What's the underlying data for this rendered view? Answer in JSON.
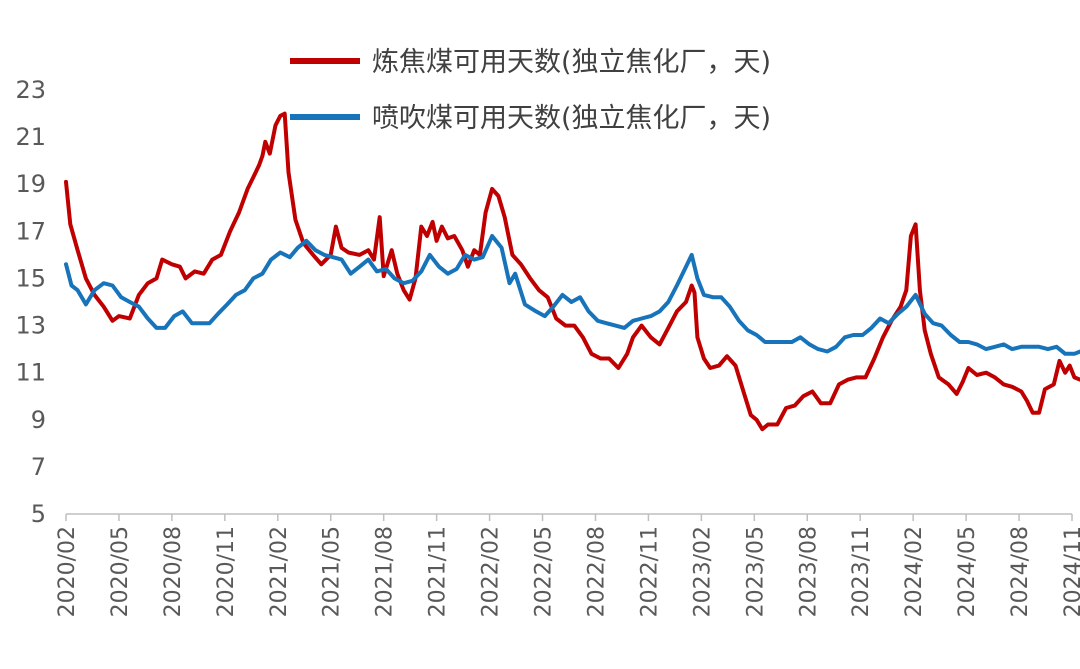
{
  "chart_data": {
    "type": "line",
    "title": "",
    "xlabel": "",
    "ylabel": "",
    "ylim": [
      5,
      23
    ],
    "yticks": [
      "23",
      "21",
      "19",
      "17",
      "15",
      "13",
      "11",
      "9",
      "7",
      "5"
    ],
    "xticks": [
      "2020/02",
      "2020/05",
      "2020/08",
      "2020/11",
      "2021/02",
      "2021/05",
      "2021/08",
      "2021/11",
      "2022/02",
      "2022/05",
      "2022/08",
      "2022/11",
      "2023/02",
      "2023/05",
      "2023/08",
      "2023/11",
      "2024/02",
      "2024/05",
      "2024/08",
      "2024/11"
    ],
    "grid": false,
    "legend_position": "top",
    "series": [
      {
        "name": "炼焦煤可用天数(独立焦化厂，天)",
        "color": "#C00000",
        "points": [
          [
            "2020-02-01",
            19.1
          ],
          [
            "2020-02-08",
            17.3
          ],
          [
            "2020-02-20",
            16.2
          ],
          [
            "2020-03-05",
            15.0
          ],
          [
            "2020-03-20",
            14.3
          ],
          [
            "2020-04-05",
            13.8
          ],
          [
            "2020-04-20",
            13.2
          ],
          [
            "2020-05-01",
            13.4
          ],
          [
            "2020-05-20",
            13.3
          ],
          [
            "2020-06-05",
            14.3
          ],
          [
            "2020-06-20",
            14.8
          ],
          [
            "2020-07-05",
            15.0
          ],
          [
            "2020-07-15",
            15.8
          ],
          [
            "2020-08-01",
            15.6
          ],
          [
            "2020-08-15",
            15.5
          ],
          [
            "2020-08-25",
            15.0
          ],
          [
            "2020-09-10",
            15.3
          ],
          [
            "2020-09-25",
            15.2
          ],
          [
            "2020-10-10",
            15.8
          ],
          [
            "2020-10-25",
            16.0
          ],
          [
            "2020-11-10",
            17.0
          ],
          [
            "2020-11-25",
            17.8
          ],
          [
            "2020-12-10",
            18.8
          ],
          [
            "2020-12-20",
            19.3
          ],
          [
            "2020-12-30",
            19.8
          ],
          [
            "2021-01-05",
            20.2
          ],
          [
            "2021-01-10",
            20.8
          ],
          [
            "2021-01-18",
            20.3
          ],
          [
            "2021-01-28",
            21.5
          ],
          [
            "2021-02-05",
            21.9
          ],
          [
            "2021-02-12",
            22.0
          ],
          [
            "2021-02-18",
            19.5
          ],
          [
            "2021-03-01",
            17.5
          ],
          [
            "2021-03-15",
            16.5
          ],
          [
            "2021-04-01",
            16.0
          ],
          [
            "2021-04-15",
            15.6
          ],
          [
            "2021-05-01",
            16.0
          ],
          [
            "2021-05-10",
            17.2
          ],
          [
            "2021-05-20",
            16.3
          ],
          [
            "2021-06-01",
            16.1
          ],
          [
            "2021-06-20",
            16.0
          ],
          [
            "2021-07-05",
            16.2
          ],
          [
            "2021-07-15",
            15.8
          ],
          [
            "2021-07-25",
            17.6
          ],
          [
            "2021-08-01",
            15.1
          ],
          [
            "2021-08-15",
            16.2
          ],
          [
            "2021-08-25",
            15.2
          ],
          [
            "2021-09-05",
            14.5
          ],
          [
            "2021-09-15",
            14.1
          ],
          [
            "2021-09-25",
            15.0
          ],
          [
            "2021-10-05",
            17.2
          ],
          [
            "2021-10-15",
            16.8
          ],
          [
            "2021-10-25",
            17.4
          ],
          [
            "2021-11-01",
            16.6
          ],
          [
            "2021-11-10",
            17.2
          ],
          [
            "2021-11-20",
            16.7
          ],
          [
            "2021-12-01",
            16.8
          ],
          [
            "2021-12-15",
            16.2
          ],
          [
            "2021-12-25",
            15.5
          ],
          [
            "2022-01-05",
            16.2
          ],
          [
            "2022-01-15",
            16.0
          ],
          [
            "2022-01-25",
            17.8
          ],
          [
            "2022-02-05",
            18.8
          ],
          [
            "2022-02-15",
            18.5
          ],
          [
            "2022-02-25",
            17.6
          ],
          [
            "2022-03-10",
            16.0
          ],
          [
            "2022-03-25",
            15.6
          ],
          [
            "2022-04-10",
            15.0
          ],
          [
            "2022-04-25",
            14.5
          ],
          [
            "2022-05-10",
            14.2
          ],
          [
            "2022-05-25",
            13.3
          ],
          [
            "2022-06-10",
            13.0
          ],
          [
            "2022-06-25",
            13.0
          ],
          [
            "2022-07-10",
            12.5
          ],
          [
            "2022-07-25",
            11.8
          ],
          [
            "2022-08-10",
            11.6
          ],
          [
            "2022-08-25",
            11.6
          ],
          [
            "2022-09-10",
            11.2
          ],
          [
            "2022-09-25",
            11.8
          ],
          [
            "2022-10-05",
            12.5
          ],
          [
            "2022-10-20",
            13.0
          ],
          [
            "2022-11-05",
            12.5
          ],
          [
            "2022-11-20",
            12.2
          ],
          [
            "2022-12-05",
            12.9
          ],
          [
            "2022-12-20",
            13.6
          ],
          [
            "2023-01-05",
            14.0
          ],
          [
            "2023-01-15",
            14.7
          ],
          [
            "2023-01-20",
            14.4
          ],
          [
            "2023-01-25",
            12.5
          ],
          [
            "2023-02-05",
            11.6
          ],
          [
            "2023-02-15",
            11.2
          ],
          [
            "2023-03-01",
            11.3
          ],
          [
            "2023-03-15",
            11.7
          ],
          [
            "2023-03-30",
            11.3
          ],
          [
            "2023-04-15",
            10.0
          ],
          [
            "2023-04-25",
            9.2
          ],
          [
            "2023-05-05",
            9.0
          ],
          [
            "2023-05-15",
            8.6
          ],
          [
            "2023-05-25",
            8.8
          ],
          [
            "2023-06-10",
            8.8
          ],
          [
            "2023-06-25",
            9.5
          ],
          [
            "2023-07-10",
            9.6
          ],
          [
            "2023-07-25",
            10.0
          ],
          [
            "2023-08-10",
            10.2
          ],
          [
            "2023-08-25",
            9.7
          ],
          [
            "2023-09-10",
            9.7
          ],
          [
            "2023-09-25",
            10.5
          ],
          [
            "2023-10-10",
            10.7
          ],
          [
            "2023-10-25",
            10.8
          ],
          [
            "2023-11-10",
            10.8
          ],
          [
            "2023-11-25",
            11.6
          ],
          [
            "2023-12-10",
            12.5
          ],
          [
            "2023-12-25",
            13.2
          ],
          [
            "2024-01-10",
            13.8
          ],
          [
            "2024-01-20",
            14.5
          ],
          [
            "2024-01-28",
            16.8
          ],
          [
            "2024-02-05",
            17.3
          ],
          [
            "2024-02-12",
            14.5
          ],
          [
            "2024-02-20",
            12.8
          ],
          [
            "2024-03-01",
            11.8
          ],
          [
            "2024-03-15",
            10.8
          ],
          [
            "2024-04-01",
            10.5
          ],
          [
            "2024-04-15",
            10.1
          ],
          [
            "2024-04-25",
            10.6
          ],
          [
            "2024-05-05",
            11.2
          ],
          [
            "2024-05-20",
            10.9
          ],
          [
            "2024-06-05",
            11.0
          ],
          [
            "2024-06-20",
            10.8
          ],
          [
            "2024-07-05",
            10.5
          ],
          [
            "2024-07-20",
            10.4
          ],
          [
            "2024-08-05",
            10.2
          ],
          [
            "2024-08-15",
            9.8
          ],
          [
            "2024-08-25",
            9.3
          ],
          [
            "2024-09-05",
            9.3
          ],
          [
            "2024-09-15",
            10.3
          ],
          [
            "2024-09-30",
            10.5
          ],
          [
            "2024-10-10",
            11.5
          ],
          [
            "2024-10-20",
            11.0
          ],
          [
            "2024-10-28",
            11.3
          ],
          [
            "2024-11-05",
            10.8
          ],
          [
            "2024-11-15",
            10.7
          ]
        ]
      },
      {
        "name": "喷吹煤可用天数(独立焦化厂，天)",
        "color": "#1874BA",
        "points": [
          [
            "2020-02-01",
            15.6
          ],
          [
            "2020-02-10",
            14.7
          ],
          [
            "2020-02-20",
            14.5
          ],
          [
            "2020-03-05",
            13.9
          ],
          [
            "2020-03-20",
            14.5
          ],
          [
            "2020-04-05",
            14.8
          ],
          [
            "2020-04-20",
            14.7
          ],
          [
            "2020-05-05",
            14.2
          ],
          [
            "2020-05-20",
            14.0
          ],
          [
            "2020-06-05",
            13.8
          ],
          [
            "2020-06-20",
            13.3
          ],
          [
            "2020-07-05",
            12.9
          ],
          [
            "2020-07-20",
            12.9
          ],
          [
            "2020-08-05",
            13.4
          ],
          [
            "2020-08-20",
            13.6
          ],
          [
            "2020-09-05",
            13.1
          ],
          [
            "2020-09-20",
            13.1
          ],
          [
            "2020-10-05",
            13.1
          ],
          [
            "2020-10-20",
            13.5
          ],
          [
            "2020-11-05",
            13.9
          ],
          [
            "2020-11-20",
            14.3
          ],
          [
            "2020-12-05",
            14.5
          ],
          [
            "2020-12-20",
            15.0
          ],
          [
            "2021-01-05",
            15.2
          ],
          [
            "2021-01-20",
            15.8
          ],
          [
            "2021-02-05",
            16.1
          ],
          [
            "2021-02-20",
            15.9
          ],
          [
            "2021-03-05",
            16.3
          ],
          [
            "2021-03-20",
            16.6
          ],
          [
            "2021-04-05",
            16.2
          ],
          [
            "2021-04-20",
            16.0
          ],
          [
            "2021-05-05",
            15.9
          ],
          [
            "2021-05-20",
            15.8
          ],
          [
            "2021-06-05",
            15.2
          ],
          [
            "2021-06-20",
            15.5
          ],
          [
            "2021-07-05",
            15.8
          ],
          [
            "2021-07-20",
            15.3
          ],
          [
            "2021-08-05",
            15.4
          ],
          [
            "2021-08-20",
            15.0
          ],
          [
            "2021-09-05",
            14.8
          ],
          [
            "2021-09-20",
            14.9
          ],
          [
            "2021-10-05",
            15.3
          ],
          [
            "2021-10-20",
            16.0
          ],
          [
            "2021-11-05",
            15.5
          ],
          [
            "2021-11-20",
            15.2
          ],
          [
            "2021-12-05",
            15.4
          ],
          [
            "2021-12-20",
            16.0
          ],
          [
            "2022-01-05",
            15.8
          ],
          [
            "2022-01-20",
            15.9
          ],
          [
            "2022-02-05",
            16.8
          ],
          [
            "2022-02-20",
            16.3
          ],
          [
            "2022-03-05",
            14.8
          ],
          [
            "2022-03-15",
            15.2
          ],
          [
            "2022-04-01",
            13.9
          ],
          [
            "2022-04-20",
            13.6
          ],
          [
            "2022-05-05",
            13.4
          ],
          [
            "2022-05-20",
            13.8
          ],
          [
            "2022-06-05",
            14.3
          ],
          [
            "2022-06-20",
            14.0
          ],
          [
            "2022-07-05",
            14.2
          ],
          [
            "2022-07-20",
            13.6
          ],
          [
            "2022-08-05",
            13.2
          ],
          [
            "2022-08-20",
            13.1
          ],
          [
            "2022-09-05",
            13.0
          ],
          [
            "2022-09-20",
            12.9
          ],
          [
            "2022-10-05",
            13.2
          ],
          [
            "2022-10-20",
            13.3
          ],
          [
            "2022-11-05",
            13.4
          ],
          [
            "2022-11-20",
            13.6
          ],
          [
            "2022-12-05",
            14.0
          ],
          [
            "2022-12-20",
            14.7
          ],
          [
            "2023-01-05",
            15.5
          ],
          [
            "2023-01-15",
            16.0
          ],
          [
            "2023-01-25",
            15.0
          ],
          [
            "2023-02-05",
            14.3
          ],
          [
            "2023-02-20",
            14.2
          ],
          [
            "2023-03-05",
            14.2
          ],
          [
            "2023-03-20",
            13.8
          ],
          [
            "2023-04-05",
            13.2
          ],
          [
            "2023-04-20",
            12.8
          ],
          [
            "2023-05-05",
            12.6
          ],
          [
            "2023-05-20",
            12.3
          ],
          [
            "2023-06-05",
            12.3
          ],
          [
            "2023-06-20",
            12.3
          ],
          [
            "2023-07-05",
            12.3
          ],
          [
            "2023-07-20",
            12.5
          ],
          [
            "2023-08-05",
            12.2
          ],
          [
            "2023-08-20",
            12.0
          ],
          [
            "2023-09-05",
            11.9
          ],
          [
            "2023-09-20",
            12.1
          ],
          [
            "2023-10-05",
            12.5
          ],
          [
            "2023-10-20",
            12.6
          ],
          [
            "2023-11-05",
            12.6
          ],
          [
            "2023-11-20",
            12.9
          ],
          [
            "2023-12-05",
            13.3
          ],
          [
            "2023-12-20",
            13.1
          ],
          [
            "2024-01-05",
            13.5
          ],
          [
            "2024-01-20",
            13.8
          ],
          [
            "2024-02-05",
            14.3
          ],
          [
            "2024-02-20",
            13.5
          ],
          [
            "2024-03-05",
            13.1
          ],
          [
            "2024-03-20",
            13.0
          ],
          [
            "2024-04-05",
            12.6
          ],
          [
            "2024-04-20",
            12.3
          ],
          [
            "2024-05-05",
            12.3
          ],
          [
            "2024-05-20",
            12.2
          ],
          [
            "2024-06-05",
            12.0
          ],
          [
            "2024-06-20",
            12.1
          ],
          [
            "2024-07-05",
            12.2
          ],
          [
            "2024-07-20",
            12.0
          ],
          [
            "2024-08-05",
            12.1
          ],
          [
            "2024-08-20",
            12.1
          ],
          [
            "2024-09-05",
            12.1
          ],
          [
            "2024-09-20",
            12.0
          ],
          [
            "2024-10-05",
            12.1
          ],
          [
            "2024-10-20",
            11.8
          ],
          [
            "2024-11-05",
            11.8
          ],
          [
            "2024-11-15",
            11.9
          ]
        ]
      }
    ]
  }
}
